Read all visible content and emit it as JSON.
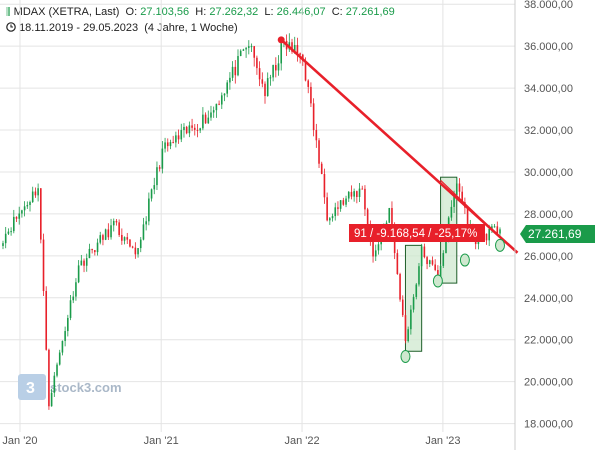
{
  "header": {
    "instrument_label": "MDAX (XETRA, Last)",
    "open_label": "O:",
    "open_value": "27.103,56",
    "high_label": "H:",
    "high_value": "27.262,32",
    "low_label": "L:",
    "low_value": "26.446,07",
    "close_label": "C:",
    "close_value": "27.261,69",
    "period": "18.11.2019 - 29.05.2023",
    "interval": "(4 Jahre, 1 Woche)",
    "icons": [
      "candlestick-icon",
      "clock-icon"
    ]
  },
  "watermark": {
    "text": "stock3.com",
    "logo_icon": "stock3-logo-icon"
  },
  "annotation": {
    "text": "91 / -9.168,54 / -25,17%",
    "color": "#e8202a"
  },
  "price_badge": {
    "text": "27.261,69",
    "color": "#1a9b4a"
  },
  "colors": {
    "up": "#1a9b4a",
    "down": "#e8202a",
    "trendline": "#e8202a",
    "box_fill": "#cfe8cf",
    "box_stroke": "#1f5f2a"
  },
  "chart_data": {
    "type": "candlestick",
    "title": "MDAX (XETRA, Last)",
    "interval": "1 Woche",
    "ylim": [
      17600,
      38200
    ],
    "y_ticks": [
      18000,
      20000,
      22000,
      24000,
      26000,
      28000,
      30000,
      32000,
      34000,
      36000,
      38000
    ],
    "y_tick_labels": [
      "18.000,00",
      "20.000,00",
      "22.000,00",
      "24.000,00",
      "26.000,00",
      "28.000,00",
      "30.000,00",
      "32.000,00",
      "34.000,00",
      "36.000,00",
      "38.000,00"
    ],
    "x_tick_labels": [
      "Jan '20",
      "Jan '21",
      "Jan '22",
      "Jan '23"
    ],
    "x_tick_dates": [
      "2020-01-01",
      "2021-01-01",
      "2022-01-01",
      "2023-01-01"
    ],
    "x_range": [
      "2019-11-18",
      "2023-05-29"
    ],
    "last_close": 27261.69,
    "key_points": [
      {
        "date": "2019-11-18",
        "close": 26900
      },
      {
        "date": "2020-02-17",
        "close": 29300
      },
      {
        "date": "2020-03-16",
        "close": 19000
      },
      {
        "date": "2020-06-01",
        "close": 25500
      },
      {
        "date": "2020-09-01",
        "close": 27500
      },
      {
        "date": "2020-10-26",
        "close": 25900
      },
      {
        "date": "2021-01-04",
        "close": 31000
      },
      {
        "date": "2021-05-10",
        "close": 32800
      },
      {
        "date": "2021-08-16",
        "close": 36100
      },
      {
        "date": "2021-09-27",
        "close": 33800
      },
      {
        "date": "2021-11-15",
        "close": 36100
      },
      {
        "date": "2022-01-03",
        "close": 35500
      },
      {
        "date": "2022-03-07",
        "close": 28000
      },
      {
        "date": "2022-06-06",
        "close": 29200
      },
      {
        "date": "2022-07-04",
        "close": 25900
      },
      {
        "date": "2022-08-15",
        "close": 28200
      },
      {
        "date": "2022-09-26",
        "close": 22000
      },
      {
        "date": "2022-11-07",
        "close": 26200
      },
      {
        "date": "2022-12-19",
        "close": 25000
      },
      {
        "date": "2023-02-06",
        "close": 29500
      },
      {
        "date": "2023-03-20",
        "close": 26800
      },
      {
        "date": "2023-05-29",
        "close": 27261.69
      }
    ],
    "trendlines": [
      {
        "from": {
          "date": "2021-11-08",
          "value": 36300
        },
        "to": {
          "date": "2023-05-29",
          "value": 26900
        }
      },
      {
        "from": {
          "date": "2022-12-26",
          "value": 29600
        },
        "to": {
          "date": "2023-05-29",
          "value": 26900
        }
      }
    ],
    "boxes": [
      {
        "from": {
          "date": "2022-09-26",
          "value": 21450
        },
        "to": {
          "date": "2022-11-07",
          "value": 26500
        }
      },
      {
        "from": {
          "date": "2022-12-26",
          "value": 24700
        },
        "to": {
          "date": "2023-02-06",
          "value": 29750
        }
      }
    ],
    "markers": [
      {
        "date": "2022-09-26",
        "value": 21200
      },
      {
        "date": "2022-12-19",
        "value": 24800
      },
      {
        "date": "2023-02-27",
        "value": 25800
      },
      {
        "date": "2023-05-29",
        "value": 26500
      }
    ]
  }
}
